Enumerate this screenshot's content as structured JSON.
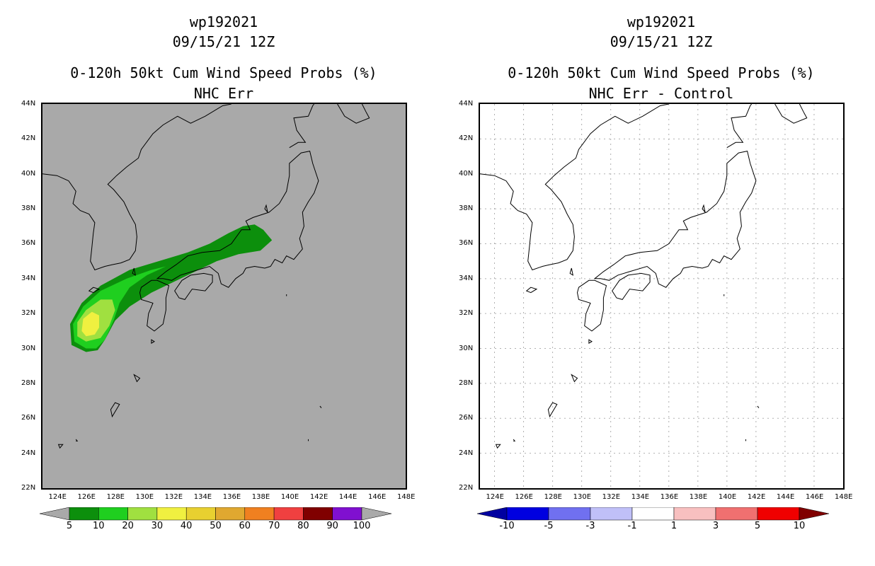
{
  "left_panel": {
    "storm_id": "wp192021",
    "datetime": "09/15/21 12Z",
    "title": "0-120h 50kt Cum Wind Speed Probs (%)",
    "subtitle": "NHC Err",
    "background_color": "#a9a9a9",
    "colorbar": {
      "labels": [
        "5",
        "10",
        "20",
        "30",
        "40",
        "50",
        "60",
        "70",
        "80",
        "90",
        "100"
      ],
      "colors": [
        "#0c8f0c",
        "#1fcf1f",
        "#a0e040",
        "#f0f040",
        "#e8d030",
        "#e0a830",
        "#f08020",
        "#f04040",
        "#800000",
        "#8010d0"
      ],
      "below_color": "#a9a9a9",
      "above_color": "#a9a9a9"
    }
  },
  "right_panel": {
    "storm_id": "wp192021",
    "datetime": "09/15/21 12Z",
    "title": "0-120h 50kt Cum Wind Speed Probs (%)",
    "subtitle": "NHC Err - Control",
    "background_color": "#ffffff",
    "colorbar": {
      "labels": [
        "-10",
        "-5",
        "-3",
        "-1",
        "1",
        "3",
        "5",
        "10"
      ],
      "colors": [
        "#0000e0",
        "#7070f0",
        "#c0c0f8",
        "#ffffff",
        "#f8c0c0",
        "#f07070",
        "#f00000"
      ],
      "below_color": "#0000a0",
      "above_color": "#800000"
    }
  },
  "map": {
    "lat_labels": [
      "44N",
      "42N",
      "40N",
      "38N",
      "36N",
      "34N",
      "32N",
      "30N",
      "28N",
      "26N",
      "24N",
      "22N"
    ],
    "lon_labels": [
      "124E",
      "126E",
      "128E",
      "130E",
      "132E",
      "134E",
      "136E",
      "138E",
      "140E",
      "142E",
      "144E",
      "146E",
      "148E"
    ]
  },
  "chart_data": {
    "type": "heatmap",
    "title": "0-120h 50kt Cum Wind Speed Probs (%)",
    "units": "%",
    "xlim": [
      123,
      148
    ],
    "ylim": [
      22,
      44
    ],
    "contours": [
      {
        "level": 5,
        "color": "#0c8f0c",
        "points": [
          [
            126.0,
            29.8
          ],
          [
            125.0,
            30.2
          ],
          [
            124.9,
            31.4
          ],
          [
            125.7,
            32.6
          ],
          [
            127.0,
            33.6
          ],
          [
            129.0,
            34.5
          ],
          [
            131.0,
            35.0
          ],
          [
            133.0,
            35.5
          ],
          [
            134.5,
            36.0
          ],
          [
            135.8,
            36.6
          ],
          [
            136.8,
            37.0
          ],
          [
            137.6,
            37.1
          ],
          [
            138.2,
            36.8
          ],
          [
            138.8,
            36.2
          ],
          [
            138.0,
            35.6
          ],
          [
            136.5,
            35.4
          ],
          [
            135.0,
            35.0
          ],
          [
            133.5,
            34.4
          ],
          [
            132.0,
            33.8
          ],
          [
            130.5,
            33.2
          ],
          [
            129.0,
            32.4
          ],
          [
            128.0,
            31.6
          ],
          [
            127.3,
            30.5
          ],
          [
            126.8,
            29.9
          ]
        ]
      },
      {
        "level": 10,
        "color": "#1fcf1f",
        "points": [
          [
            126.0,
            30.0
          ],
          [
            125.2,
            30.4
          ],
          [
            125.1,
            31.4
          ],
          [
            125.8,
            32.4
          ],
          [
            127.0,
            33.3
          ],
          [
            128.8,
            34.0
          ],
          [
            130.5,
            34.5
          ],
          [
            131.5,
            34.7
          ],
          [
            130.2,
            34.2
          ],
          [
            129.0,
            33.5
          ],
          [
            128.3,
            32.6
          ],
          [
            127.9,
            31.6
          ],
          [
            127.3,
            30.5
          ],
          [
            126.7,
            30.0
          ]
        ]
      },
      {
        "level": 20,
        "color": "#a0e040",
        "points": [
          [
            126.0,
            30.4
          ],
          [
            125.4,
            30.7
          ],
          [
            125.4,
            31.5
          ],
          [
            126.0,
            32.2
          ],
          [
            127.0,
            32.8
          ],
          [
            127.8,
            32.8
          ],
          [
            128.0,
            32.2
          ],
          [
            127.6,
            31.3
          ],
          [
            127.0,
            30.6
          ]
        ]
      },
      {
        "level": 30,
        "color": "#f0f040",
        "points": [
          [
            126.0,
            30.7
          ],
          [
            125.7,
            31.0
          ],
          [
            125.8,
            31.7
          ],
          [
            126.4,
            32.1
          ],
          [
            126.9,
            31.9
          ],
          [
            126.9,
            31.2
          ],
          [
            126.6,
            30.8
          ]
        ]
      }
    ]
  }
}
